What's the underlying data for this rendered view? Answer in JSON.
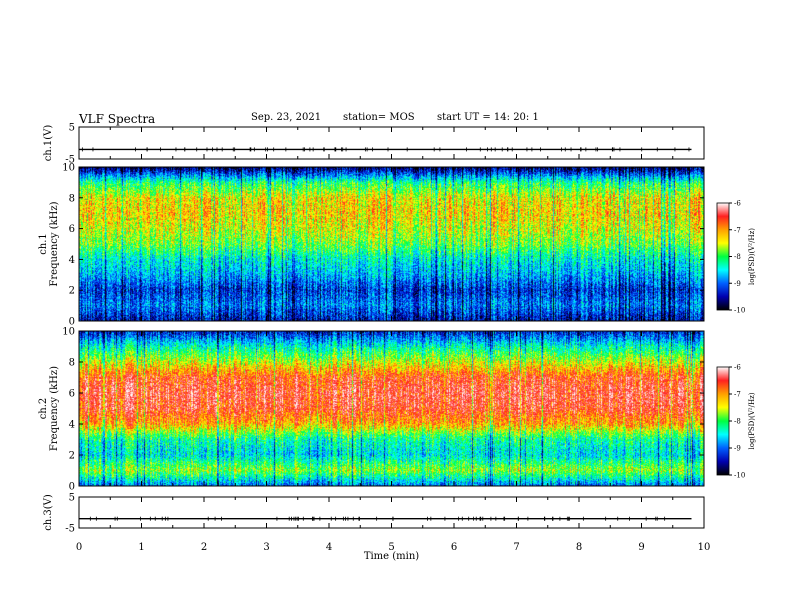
{
  "header": {
    "title": "VLF Spectra",
    "date": "Sep. 23, 2021",
    "station": "station= MOS",
    "start": "start  UT =   14: 20: 1"
  },
  "colorbar": {
    "label": "log(PSD)(V²/Hz)",
    "ticks": [
      "-6",
      "-7",
      "-8",
      "-9",
      "-10"
    ],
    "colors": [
      "#ffffff",
      "#ff2020",
      "#ffa000",
      "#ffff00",
      "#00ff40",
      "#00ffff",
      "#0060ff",
      "#0000b0",
      "#000000"
    ]
  },
  "chart_data": [
    {
      "type": "line",
      "panel": "ch.1(V)",
      "ylabel": "ch.1(V)",
      "ylim": [
        -5,
        5
      ],
      "yticks": [
        "5",
        "-5"
      ],
      "x": [
        0,
        1,
        2,
        3,
        4,
        5,
        6,
        7,
        8,
        9,
        9.8
      ],
      "series": [
        {
          "values": [
            -2,
            -2,
            -2,
            -2,
            -2,
            -2,
            -2,
            -2,
            -2,
            -2,
            -2
          ]
        }
      ]
    },
    {
      "type": "heatmap",
      "panel": "ch.1",
      "ylabel_line1": "ch.1",
      "ylabel_line2": "Frequency (kHz)",
      "ylim": [
        0,
        10
      ],
      "yticks": [
        "0",
        "2",
        "4",
        "6",
        "8",
        "10"
      ],
      "zrange": [
        -10,
        -6
      ],
      "x": [
        0,
        1,
        2,
        3,
        4,
        5,
        6,
        7,
        8,
        9,
        9.8
      ],
      "y": [
        0,
        1,
        2,
        3,
        4,
        5,
        6,
        7,
        8,
        9,
        10
      ],
      "z": [
        [
          -9.5,
          -9.5,
          -9.5,
          -9.5,
          -9.5,
          -9.5,
          -9.5,
          -9.5,
          -9.5,
          -9.5,
          -9.5
        ],
        [
          -9.0,
          -9.0,
          -9.0,
          -9.0,
          -9.0,
          -9.0,
          -9.0,
          -9.0,
          -9.0,
          -9.0,
          -9.0
        ],
        [
          -9.3,
          -9.3,
          -9.3,
          -9.3,
          -9.3,
          -9.3,
          -9.3,
          -9.3,
          -9.3,
          -9.3,
          -9.3
        ],
        [
          -8.8,
          -8.8,
          -8.8,
          -8.8,
          -8.8,
          -8.8,
          -8.8,
          -8.8,
          -8.8,
          -8.8,
          -8.8
        ],
        [
          -8.5,
          -8.5,
          -8.5,
          -8.5,
          -8.5,
          -8.5,
          -8.5,
          -8.5,
          -8.5,
          -8.5,
          -8.5
        ],
        [
          -7.9,
          -7.9,
          -7.9,
          -7.9,
          -7.9,
          -7.9,
          -7.9,
          -7.9,
          -7.9,
          -7.9,
          -7.9
        ],
        [
          -7.6,
          -7.6,
          -7.6,
          -7.6,
          -7.6,
          -7.6,
          -7.6,
          -7.6,
          -7.6,
          -7.6,
          -7.6
        ],
        [
          -7.4,
          -7.4,
          -7.4,
          -7.4,
          -7.4,
          -7.4,
          -7.4,
          -7.4,
          -7.4,
          -7.4,
          -7.4
        ],
        [
          -7.5,
          -7.5,
          -7.5,
          -7.5,
          -7.5,
          -7.5,
          -7.5,
          -7.5,
          -7.5,
          -7.5,
          -7.5
        ],
        [
          -8.2,
          -8.2,
          -8.2,
          -8.2,
          -8.2,
          -8.2,
          -8.2,
          -8.2,
          -8.2,
          -8.2,
          -8.2
        ],
        [
          -9.8,
          -9.8,
          -9.8,
          -9.8,
          -9.8,
          -9.8,
          -9.8,
          -9.8,
          -9.8,
          -9.8,
          -9.8
        ]
      ]
    },
    {
      "type": "heatmap",
      "panel": "ch.2",
      "ylabel_line1": "ch.2",
      "ylabel_line2": "Frequency (kHz)",
      "ylim": [
        0,
        10
      ],
      "yticks": [
        "0",
        "2",
        "4",
        "6",
        "8",
        "10"
      ],
      "zrange": [
        -10,
        -6
      ],
      "x": [
        0,
        1,
        2,
        3,
        4,
        5,
        6,
        7,
        8,
        9,
        9.8
      ],
      "y": [
        0,
        1,
        2,
        3,
        4,
        5,
        6,
        7,
        8,
        9,
        10
      ],
      "z": [
        [
          -9.0,
          -9.0,
          -9.0,
          -9.0,
          -9.0,
          -9.0,
          -9.0,
          -9.0,
          -9.0,
          -9.0,
          -9.0
        ],
        [
          -7.8,
          -7.8,
          -7.8,
          -7.8,
          -7.8,
          -7.8,
          -7.8,
          -7.8,
          -7.8,
          -7.8,
          -7.8
        ],
        [
          -8.6,
          -8.6,
          -8.6,
          -8.6,
          -8.6,
          -8.6,
          -8.6,
          -8.6,
          -8.6,
          -8.6,
          -8.6
        ],
        [
          -8.3,
          -8.3,
          -8.3,
          -8.3,
          -8.3,
          -8.3,
          -8.3,
          -8.3,
          -8.3,
          -8.3,
          -8.3
        ],
        [
          -7.2,
          -7.2,
          -7.2,
          -7.2,
          -7.2,
          -7.2,
          -7.2,
          -7.2,
          -7.2,
          -7.2,
          -7.2
        ],
        [
          -6.7,
          -6.7,
          -6.7,
          -6.7,
          -6.7,
          -6.7,
          -6.7,
          -6.7,
          -6.7,
          -6.7,
          -6.7
        ],
        [
          -6.6,
          -6.6,
          -6.6,
          -6.6,
          -6.6,
          -6.6,
          -6.6,
          -6.6,
          -6.6,
          -6.6,
          -6.6
        ],
        [
          -6.8,
          -6.8,
          -6.8,
          -6.8,
          -6.8,
          -6.8,
          -6.8,
          -6.8,
          -6.8,
          -6.8,
          -6.8
        ],
        [
          -7.6,
          -7.6,
          -7.6,
          -7.6,
          -7.6,
          -7.6,
          -7.6,
          -7.6,
          -7.6,
          -7.6,
          -7.6
        ],
        [
          -8.4,
          -8.4,
          -8.4,
          -8.4,
          -8.4,
          -8.4,
          -8.4,
          -8.4,
          -8.4,
          -8.4,
          -8.4
        ],
        [
          -9.4,
          -9.4,
          -9.4,
          -9.4,
          -9.4,
          -9.4,
          -9.4,
          -9.4,
          -9.4,
          -9.4,
          -9.4
        ]
      ]
    },
    {
      "type": "line",
      "panel": "ch.3(V)",
      "ylabel": "ch.3(V)",
      "ylim": [
        -5,
        5
      ],
      "yticks": [
        "5",
        "-5"
      ],
      "x": [
        0,
        1,
        2,
        3,
        4,
        5,
        6,
        7,
        8,
        9,
        9.8
      ],
      "series": [
        {
          "values": [
            -2,
            -2,
            -2,
            -2,
            -2,
            -2,
            -2,
            -2,
            -2,
            -2,
            -2
          ]
        }
      ]
    }
  ],
  "xaxis": {
    "label": "Time  (min)",
    "xlim": [
      0,
      10
    ],
    "ticks": [
      "0",
      "1",
      "2",
      "3",
      "4",
      "5",
      "6",
      "7",
      "8",
      "9",
      "10"
    ]
  }
}
